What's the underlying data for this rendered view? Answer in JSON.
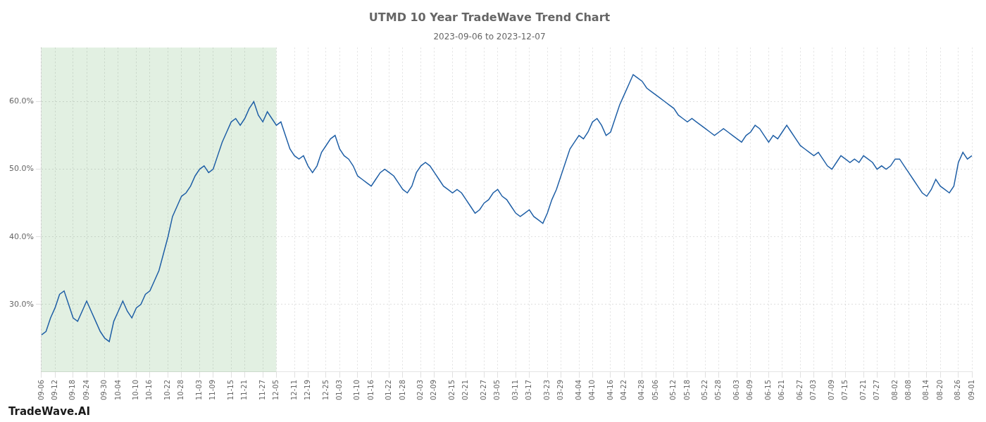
{
  "chart_data": {
    "type": "line",
    "title": "UTMD 10 Year TradeWave Trend Chart",
    "subtitle": "2023-09-06 to 2023-12-07",
    "annotations": [
      "TradeWave.AI"
    ],
    "categories": [
      "09-06",
      null,
      null,
      "09-12",
      null,
      null,
      null,
      "09-18",
      null,
      null,
      "09-24",
      null,
      null,
      null,
      "09-30",
      null,
      null,
      "10-04",
      null,
      null,
      null,
      "10-10",
      null,
      null,
      "10-16",
      null,
      null,
      null,
      "10-22",
      null,
      null,
      "10-28",
      null,
      null,
      null,
      "11-03",
      null,
      null,
      "11-09",
      null,
      null,
      null,
      "11-15",
      null,
      null,
      "11-21",
      null,
      null,
      null,
      "11-27",
      null,
      null,
      "12-05",
      null,
      null,
      null,
      "12-11",
      null,
      null,
      "12-19",
      null,
      null,
      null,
      "12-25",
      null,
      null,
      "01-03",
      null,
      null,
      null,
      "01-10",
      null,
      null,
      "01-16",
      null,
      null,
      null,
      "01-22",
      null,
      null,
      "01-28",
      null,
      null,
      null,
      "02-03",
      null,
      null,
      "02-09",
      null,
      null,
      null,
      "02-15",
      null,
      null,
      "02-21",
      null,
      null,
      null,
      "02-27",
      null,
      null,
      "03-05",
      null,
      null,
      null,
      "03-11",
      null,
      null,
      "03-17",
      null,
      null,
      null,
      "03-23",
      null,
      null,
      "03-29",
      null,
      null,
      null,
      "04-04",
      null,
      null,
      "04-10",
      null,
      null,
      null,
      "04-16",
      null,
      null,
      "04-22",
      null,
      null,
      null,
      "04-28",
      null,
      null,
      "05-06",
      null,
      null,
      null,
      "05-12",
      null,
      null,
      "05-18",
      null,
      null,
      null,
      "05-22",
      null,
      null,
      "05-28",
      null,
      null,
      null,
      "06-03",
      null,
      null,
      "06-09",
      null,
      null,
      null,
      "06-15",
      null,
      null,
      "06-21",
      null,
      null,
      null,
      "06-27",
      null,
      null,
      "07-03",
      null,
      null,
      null,
      "07-09",
      null,
      null,
      "07-15",
      null,
      null,
      null,
      "07-21",
      null,
      null,
      "07-27",
      null,
      null,
      null,
      "08-02",
      null,
      null,
      "08-08",
      null,
      null,
      null,
      "08-14",
      null,
      null,
      "08-20",
      null,
      null,
      null,
      "08-26",
      null,
      null,
      "09-01"
    ],
    "values": [
      25.5,
      26.0,
      28.0,
      29.5,
      31.5,
      32.0,
      30.0,
      28.0,
      27.5,
      29.0,
      30.5,
      29.0,
      27.5,
      26.0,
      25.0,
      24.5,
      27.5,
      29.0,
      30.5,
      29.0,
      28.0,
      29.5,
      30.0,
      31.5,
      32.0,
      33.5,
      35.0,
      37.5,
      40.0,
      43.0,
      44.5,
      46.0,
      46.5,
      47.5,
      49.0,
      50.0,
      50.5,
      49.5,
      50.0,
      52.0,
      54.0,
      55.5,
      57.0,
      57.5,
      56.5,
      57.5,
      59.0,
      60.0,
      58.0,
      57.0,
      58.5,
      57.5,
      56.5,
      57.0,
      55.0,
      53.0,
      52.0,
      51.5,
      52.0,
      50.5,
      49.5,
      50.5,
      52.5,
      53.5,
      54.5,
      55.0,
      53.0,
      52.0,
      51.5,
      50.5,
      49.0,
      48.5,
      48.0,
      47.5,
      48.5,
      49.5,
      50.0,
      49.5,
      49.0,
      48.0,
      47.0,
      46.5,
      47.5,
      49.5,
      50.5,
      51.0,
      50.5,
      49.5,
      48.5,
      47.5,
      47.0,
      46.5,
      47.0,
      46.5,
      45.5,
      44.5,
      43.5,
      44.0,
      45.0,
      45.5,
      46.5,
      47.0,
      46.0,
      45.5,
      44.5,
      43.5,
      43.0,
      43.5,
      44.0,
      43.0,
      42.5,
      42.0,
      43.5,
      45.5,
      47.0,
      49.0,
      51.0,
      53.0,
      54.0,
      55.0,
      54.5,
      55.5,
      57.0,
      57.5,
      56.5,
      55.0,
      55.5,
      57.5,
      59.5,
      61.0,
      62.5,
      64.0,
      63.5,
      63.0,
      62.0,
      61.5,
      61.0,
      60.5,
      60.0,
      59.5,
      59.0,
      58.0,
      57.5,
      57.0,
      57.5,
      57.0,
      56.5,
      56.0,
      55.5,
      55.0,
      55.5,
      56.0,
      55.5,
      55.0,
      54.5,
      54.0,
      55.0,
      55.5,
      56.5,
      56.0,
      55.0,
      54.0,
      55.0,
      54.5,
      55.5,
      56.5,
      55.5,
      54.5,
      53.5,
      53.0,
      52.5,
      52.0,
      52.5,
      51.5,
      50.5,
      50.0,
      51.0,
      52.0,
      51.5,
      51.0,
      51.5,
      51.0,
      52.0,
      51.5,
      51.0,
      50.0,
      50.5,
      50.0,
      50.5,
      51.5,
      51.5,
      50.5,
      49.5,
      48.5,
      47.5,
      46.5,
      46.0,
      47.0,
      48.5,
      47.5,
      47.0,
      46.5,
      47.5,
      51.0,
      52.5,
      51.5,
      52.0
    ],
    "color": "#1f5fa6",
    "ylim": [
      20,
      68
    ],
    "yticks": [
      {
        "value": 30,
        "label": "30.0%"
      },
      {
        "value": 40,
        "label": "40.0%"
      },
      {
        "value": 50,
        "label": "50.0%"
      },
      {
        "value": 60,
        "label": "60.0%"
      }
    ],
    "grid": true,
    "span": {
      "from": "09-06",
      "to": "12-05",
      "color": "#d6ead6"
    }
  }
}
